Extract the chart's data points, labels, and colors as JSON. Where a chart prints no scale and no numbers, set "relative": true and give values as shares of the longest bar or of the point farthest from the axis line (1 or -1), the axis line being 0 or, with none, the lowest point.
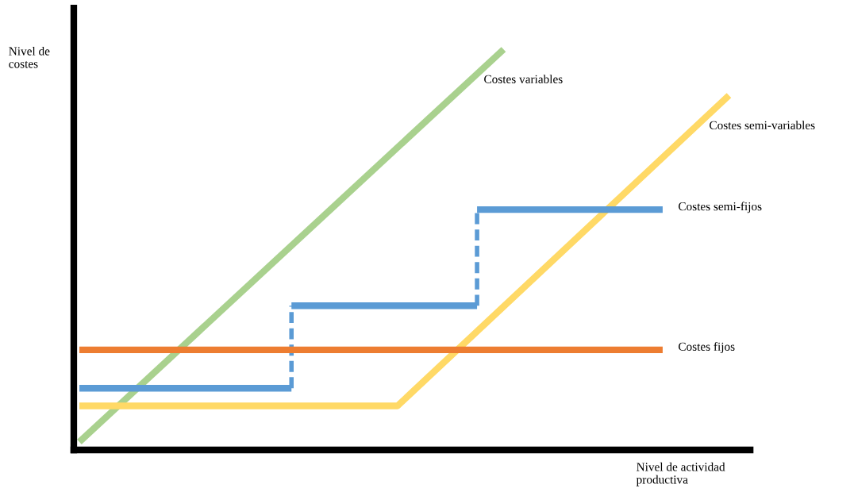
{
  "chart_data": {
    "type": "line",
    "relative": true,
    "xlabel": "Nivel de actividad\nproductiva",
    "ylabel": "Nivel de\ncostes",
    "tick_labels": false,
    "legend": false,
    "categories": [
      null,
      null,
      null,
      null,
      null,
      null,
      null,
      null,
      null,
      null,
      null,
      null,
      null,
      null,
      null,
      null,
      null,
      null,
      null,
      null,
      null,
      null,
      null,
      null,
      null,
      null,
      null,
      null,
      null,
      null,
      null,
      null,
      null,
      null,
      null,
      null,
      null,
      null,
      null,
      null,
      null,
      null,
      null,
      null,
      null,
      null,
      null,
      null,
      null,
      null
    ],
    "series": [
      {
        "name": "Costes variables",
        "color": "#a9d18e",
        "values": [
          0.02,
          null,
          null,
          null,
          null,
          null,
          null,
          null,
          null,
          null,
          null,
          null,
          null,
          null,
          null,
          null,
          null,
          null,
          null,
          null,
          null,
          null,
          null,
          null,
          null,
          null,
          null,
          null,
          null,
          null,
          null,
          null,
          1.0,
          null,
          null,
          null,
          null,
          null,
          null,
          null,
          null,
          null,
          null,
          null,
          null,
          null,
          null,
          null,
          null,
          null
        ]
      },
      {
        "name": "Costes semi-variables",
        "color": "#ffd966",
        "values": [
          0.11,
          null,
          null,
          null,
          null,
          null,
          null,
          null,
          null,
          null,
          null,
          null,
          null,
          null,
          null,
          null,
          null,
          null,
          null,
          null,
          null,
          null,
          null,
          null,
          0.11,
          null,
          null,
          null,
          null,
          null,
          null,
          null,
          null,
          null,
          null,
          null,
          null,
          null,
          null,
          null,
          null,
          null,
          null,
          null,
          null,
          null,
          null,
          null,
          null,
          0.885
        ]
      },
      {
        "name": "Costes semi-fijos",
        "type": "step",
        "color": "#5b9bd5",
        "values": [
          0.154,
          null,
          null,
          null,
          null,
          null,
          null,
          null,
          null,
          null,
          null,
          null,
          null,
          null,
          null,
          null,
          0.36,
          null,
          null,
          null,
          null,
          null,
          null,
          null,
          null,
          null,
          null,
          null,
          null,
          null,
          0.6,
          null,
          null,
          null,
          null,
          null,
          null,
          null,
          null,
          null,
          null,
          null,
          null,
          null,
          0.6,
          null,
          null,
          null,
          null,
          null
        ]
      },
      {
        "name": "Costes fijos",
        "color": "#ed7d31",
        "values": [
          0.25,
          null,
          null,
          null,
          null,
          null,
          null,
          null,
          null,
          null,
          null,
          null,
          null,
          null,
          null,
          null,
          null,
          null,
          null,
          null,
          null,
          null,
          null,
          null,
          null,
          null,
          null,
          null,
          null,
          null,
          null,
          null,
          null,
          null,
          null,
          null,
          null,
          null,
          null,
          null,
          null,
          null,
          null,
          null,
          0.25,
          null,
          null,
          null,
          null,
          null
        ]
      }
    ]
  }
}
